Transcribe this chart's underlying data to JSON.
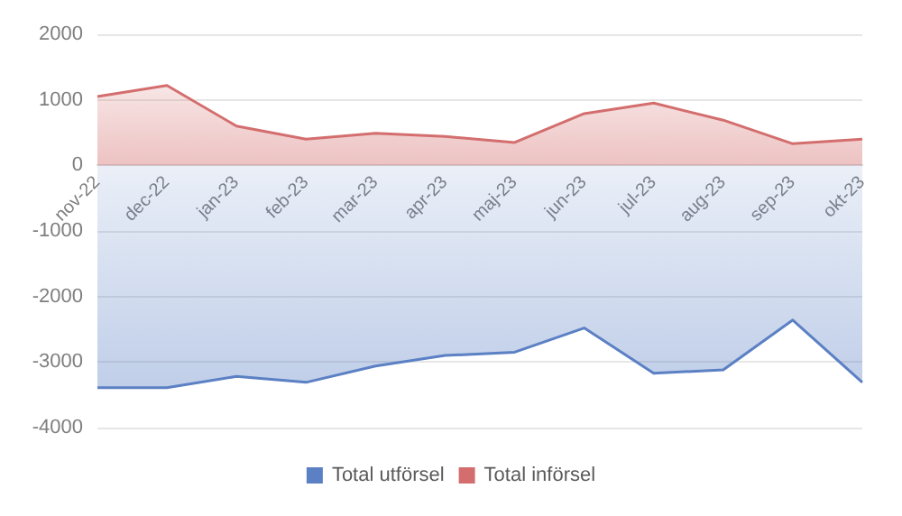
{
  "chart_data": {
    "type": "area",
    "categories": [
      "nov-22",
      "dec-22",
      "jan-23",
      "feb-23",
      "mar-23",
      "apr-23",
      "maj-23",
      "jun-23",
      "jul-23",
      "aug-23",
      "sep-23",
      "okt-23"
    ],
    "series": [
      {
        "name": "Total utförsel",
        "color": "#5b80c4",
        "values": [
          -3390,
          -3390,
          -3220,
          -3310,
          -3060,
          -2900,
          -2850,
          -2480,
          -3170,
          -3120,
          -2360,
          -3310
        ]
      },
      {
        "name": "Total införsel",
        "color": "#d46e6e",
        "values": [
          1050,
          1220,
          600,
          400,
          490,
          440,
          350,
          790,
          950,
          690,
          330,
          400
        ]
      }
    ],
    "ylim": [
      -4000,
      2000
    ],
    "yticks": [
      -4000,
      -3000,
      -2000,
      -1000,
      0,
      1000,
      2000
    ],
    "grid": "y",
    "legend": "bottom"
  }
}
